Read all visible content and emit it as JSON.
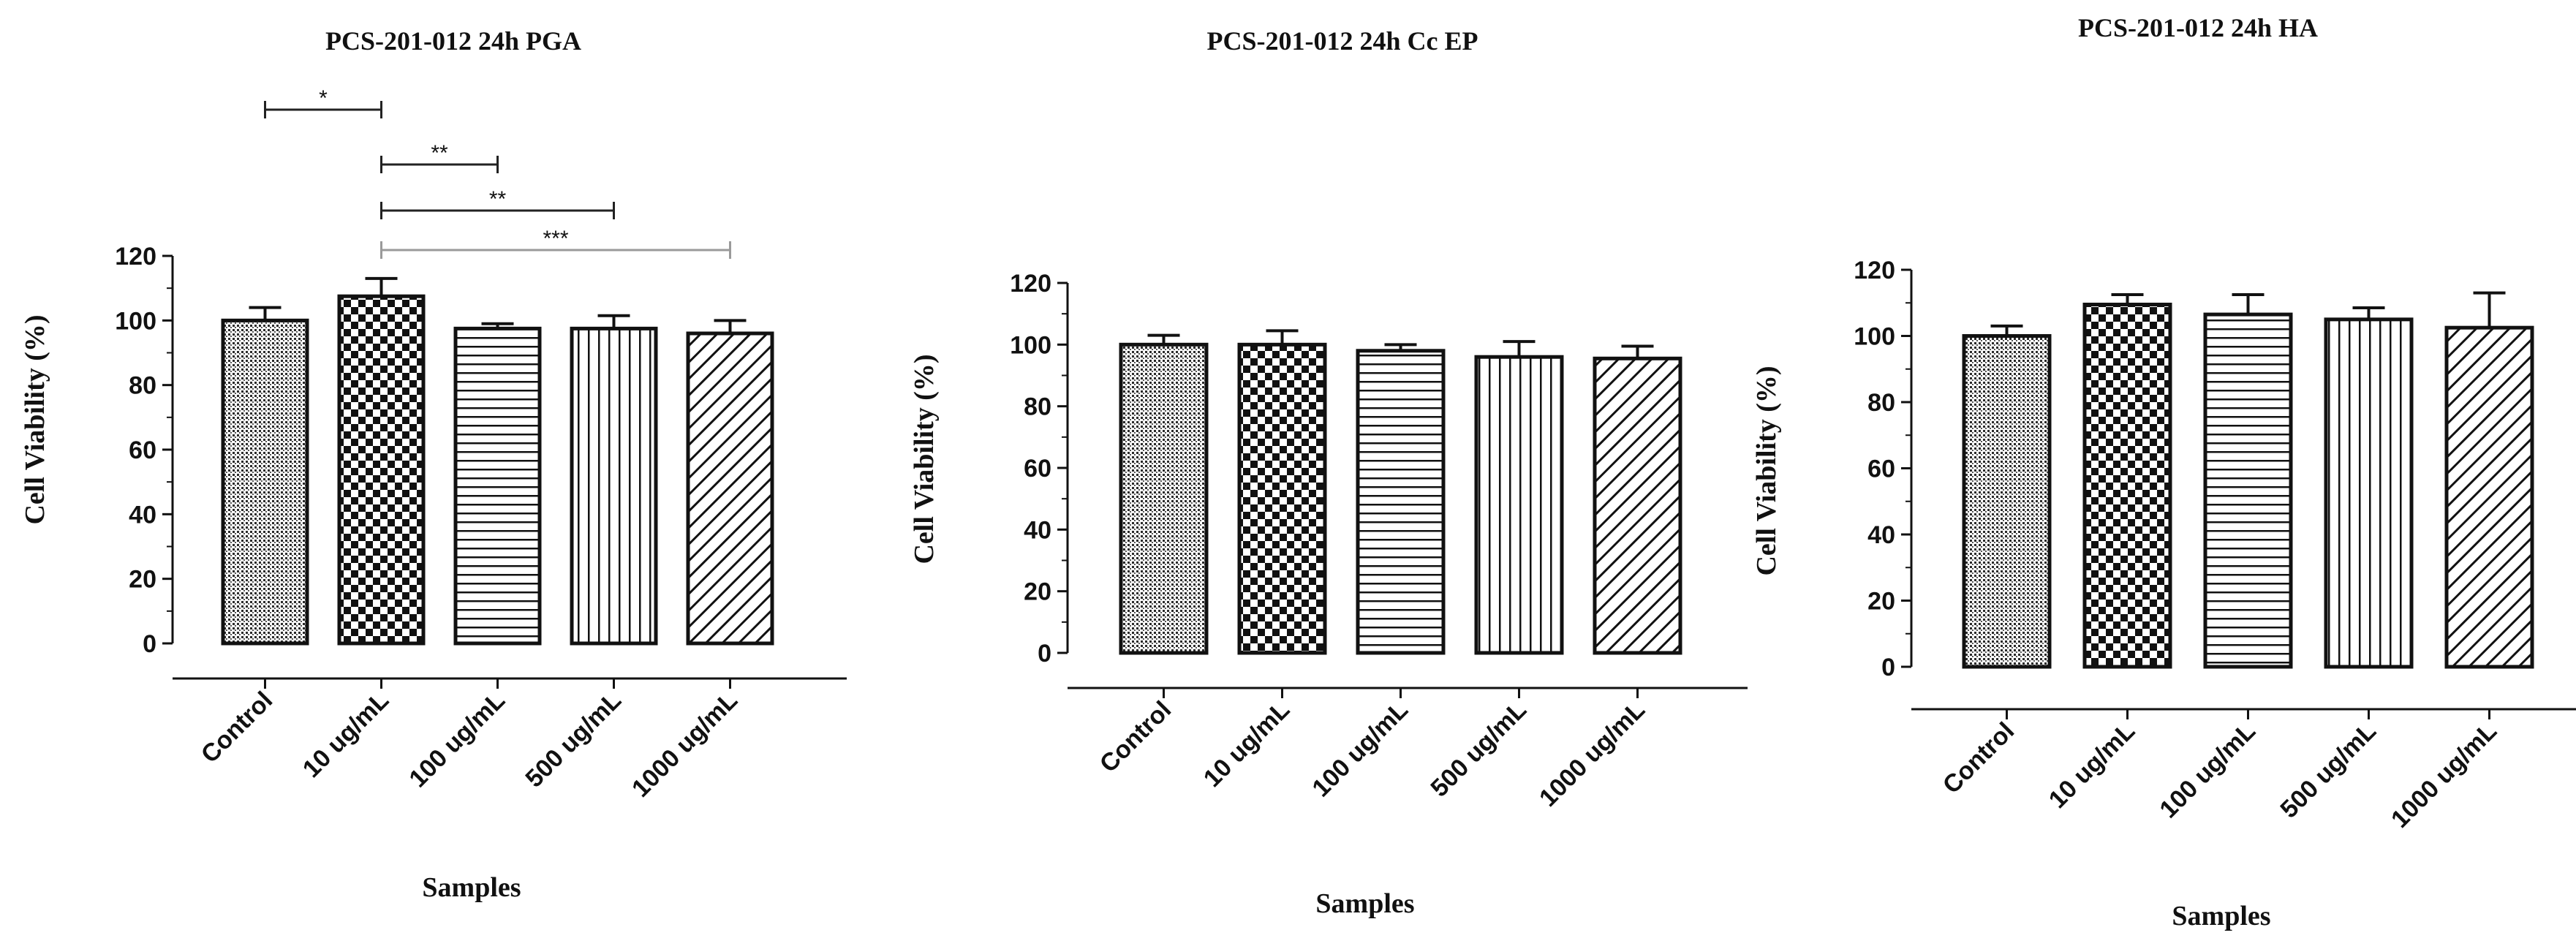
{
  "chart_data": [
    {
      "type": "bar",
      "title": "PCS-201-012 24h PGA",
      "xlabel": "Samples",
      "ylabel": "Cell Viability (%)",
      "ylim": [
        0,
        120
      ],
      "yticks": [
        0,
        20,
        40,
        60,
        80,
        100,
        120
      ],
      "grid": false,
      "categories": [
        "Control",
        "10 ug/mL",
        "100 ug/mL",
        "500 ug/mL",
        "1000 ug/mL"
      ],
      "values": [
        100,
        107.5,
        97.5,
        97.5,
        96
      ],
      "errors": [
        4,
        5.5,
        1.5,
        4,
        4
      ],
      "patterns": [
        "fine-dots",
        "checker",
        "horizontal",
        "vertical",
        "diagonal"
      ],
      "significance": [
        {
          "from": "Control",
          "to": "10 ug/mL",
          "label": "*",
          "color": "#222222"
        },
        {
          "from": "10 ug/mL",
          "to": "100 ug/mL",
          "label": "**",
          "color": "#222222"
        },
        {
          "from": "10 ug/mL",
          "to": "500 ug/mL",
          "label": "**",
          "color": "#222222"
        },
        {
          "from": "10 ug/mL",
          "to": "1000 ug/mL",
          "label": "***",
          "color": "#9a9a9a"
        }
      ]
    },
    {
      "type": "bar",
      "title": "PCS-201-012 24h Cc EP",
      "xlabel": "Samples",
      "ylabel": "Cell Viability (%)",
      "ylim": [
        0,
        120
      ],
      "yticks": [
        0,
        20,
        40,
        60,
        80,
        100,
        120
      ],
      "grid": false,
      "categories": [
        "Control",
        "10 ug/mL",
        "100 ug/mL",
        "500 ug/mL",
        "1000 ug/mL"
      ],
      "values": [
        100,
        100,
        98,
        96,
        95.5
      ],
      "errors": [
        3,
        4.5,
        2,
        5,
        4
      ],
      "patterns": [
        "fine-dots",
        "checker",
        "horizontal",
        "vertical",
        "diagonal"
      ],
      "significance": []
    },
    {
      "type": "bar",
      "title": "PCS-201-012 24h HA",
      "xlabel": "Samples",
      "ylabel": "Cell Viability (%)",
      "ylim": [
        0,
        120
      ],
      "yticks": [
        0,
        20,
        40,
        60,
        80,
        100,
        120
      ],
      "grid": false,
      "categories": [
        "Control",
        "10 ug/mL",
        "100 ug/mL",
        "500 ug/mL",
        "1000 ug/mL"
      ],
      "values": [
        100,
        109.5,
        106.5,
        105,
        102.5
      ],
      "errors": [
        3,
        3,
        6,
        3.5,
        10.5
      ],
      "patterns": [
        "fine-dots",
        "checker",
        "horizontal",
        "vertical",
        "diagonal"
      ],
      "significance": []
    }
  ]
}
